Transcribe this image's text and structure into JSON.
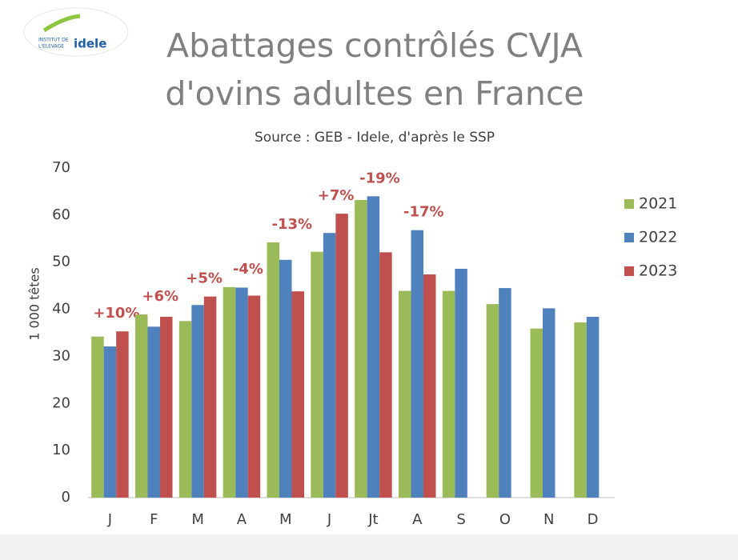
{
  "chart_data": {
    "type": "bar",
    "title": [
      "Abattages contrôlés CVJA",
      "d'ovins adultes en France"
    ],
    "subtitle": "Source : GEB - Idele, d'après le SSP",
    "ylabel": "1 000 têtes",
    "logo": {
      "line1": "INSTITUT DE",
      "line2": "L'ÉLEVAGE",
      "brand": "idele"
    },
    "categories": [
      "J",
      "F",
      "M",
      "A",
      "M",
      "J",
      "Jt",
      "A",
      "S",
      "O",
      "N",
      "D"
    ],
    "series": [
      {
        "name": "2021",
        "color": "#9bbb59",
        "values": [
          34.2,
          38.9,
          37.5,
          44.7,
          54.2,
          52.2,
          63.2,
          43.9,
          43.9,
          41.1,
          35.9,
          37.2
        ]
      },
      {
        "name": "2022",
        "color": "#4f81bd",
        "values": [
          32.1,
          36.3,
          40.9,
          44.6,
          50.5,
          56.2,
          64.0,
          56.8,
          48.6,
          44.5,
          40.2,
          38.4
        ]
      },
      {
        "name": "2023",
        "color": "#c0504d",
        "values": [
          35.3,
          38.4,
          42.7,
          42.9,
          43.8,
          60.3,
          52.1,
          47.4,
          null,
          null,
          null,
          null
        ]
      }
    ],
    "annotations": [
      "+10%",
      "+6%",
      "+5%",
      "-4%",
      "-13%",
      "+7%",
      "-19%",
      "-17%"
    ],
    "annotation_color": "#c0504d",
    "ylim": [
      0,
      70
    ],
    "yticks": [
      0,
      10,
      20,
      30,
      40,
      50,
      60,
      70
    ],
    "grid": false,
    "legend": "right"
  }
}
